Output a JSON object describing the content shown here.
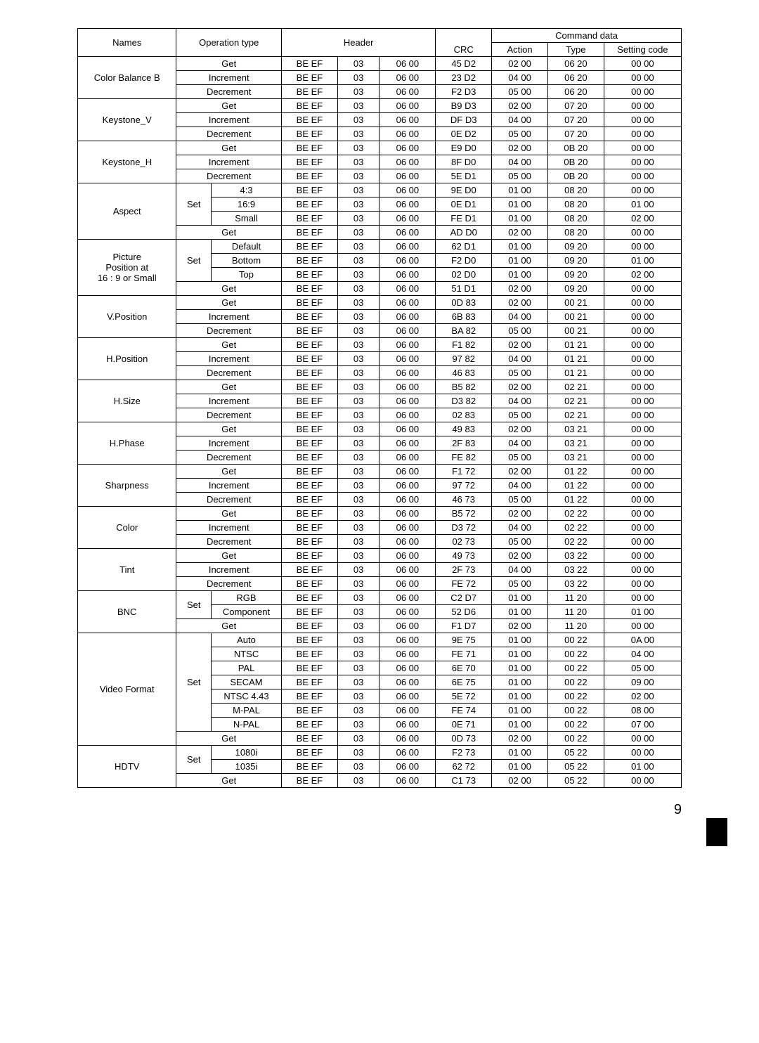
{
  "page_number": "9",
  "headers": {
    "names": "Names",
    "op": "Operation type",
    "header": "Header",
    "crc": "CRC",
    "cmd": "Command data",
    "action": "Action",
    "type": "Type",
    "setting": "Setting code"
  },
  "groups": [
    {
      "name": "Color Balance B",
      "rows": [
        {
          "op": [
            "Get"
          ],
          "h1": "BE  EF",
          "h2": "03",
          "h3": "06  00",
          "crc": "45  D2",
          "a": "02  00",
          "t": "06  20",
          "s": "00  00"
        },
        {
          "op": [
            "Increment"
          ],
          "h1": "BE  EF",
          "h2": "03",
          "h3": "06  00",
          "crc": "23  D2",
          "a": "04  00",
          "t": "06  20",
          "s": "00  00"
        },
        {
          "op": [
            "Decrement"
          ],
          "h1": "BE  EF",
          "h2": "03",
          "h3": "06  00",
          "crc": "F2  D3",
          "a": "05  00",
          "t": "06  20",
          "s": "00  00"
        }
      ]
    },
    {
      "name": "Keystone_V",
      "rows": [
        {
          "op": [
            "Get"
          ],
          "h1": "BE  EF",
          "h2": "03",
          "h3": "06  00",
          "crc": "B9  D3",
          "a": "02  00",
          "t": "07  20",
          "s": "00  00"
        },
        {
          "op": [
            "Increment"
          ],
          "h1": "BE  EF",
          "h2": "03",
          "h3": "06  00",
          "crc": "DF  D3",
          "a": "04  00",
          "t": "07  20",
          "s": "00  00"
        },
        {
          "op": [
            "Decrement"
          ],
          "h1": "BE  EF",
          "h2": "03",
          "h3": "06  00",
          "crc": "0E  D2",
          "a": "05  00",
          "t": "07  20",
          "s": "00  00"
        }
      ]
    },
    {
      "name": "Keystone_H",
      "rows": [
        {
          "op": [
            "Get"
          ],
          "h1": "BE  EF",
          "h2": "03",
          "h3": "06  00",
          "crc": "E9  D0",
          "a": "02  00",
          "t": "0B  20",
          "s": "00  00"
        },
        {
          "op": [
            "Increment"
          ],
          "h1": "BE  EF",
          "h2": "03",
          "h3": "06  00",
          "crc": "8F  D0",
          "a": "04  00",
          "t": "0B  20",
          "s": "00  00"
        },
        {
          "op": [
            "Decrement"
          ],
          "h1": "BE  EF",
          "h2": "03",
          "h3": "06  00",
          "crc": "5E  D1",
          "a": "05  00",
          "t": "0B  20",
          "s": "00  00"
        }
      ]
    },
    {
      "name": "Aspect",
      "rows": [
        {
          "op": [
            "Set",
            "4:3"
          ],
          "h1": "BE  EF",
          "h2": "03",
          "h3": "06  00",
          "crc": "9E  D0",
          "a": "01  00",
          "t": "08  20",
          "s": "00  00",
          "set_span": 3
        },
        {
          "op": [
            null,
            "16:9"
          ],
          "h1": "BE  EF",
          "h2": "03",
          "h3": "06  00",
          "crc": "0E  D1",
          "a": "01  00",
          "t": "08  20",
          "s": "01  00"
        },
        {
          "op": [
            null,
            "Small"
          ],
          "h1": "BE  EF",
          "h2": "03",
          "h3": "06  00",
          "crc": "FE  D1",
          "a": "01  00",
          "t": "08  20",
          "s": "02  00"
        },
        {
          "op": [
            "Get"
          ],
          "h1": "BE  EF",
          "h2": "03",
          "h3": "06  00",
          "crc": "AD  D0",
          "a": "02  00",
          "t": "08  20",
          "s": "00  00"
        }
      ]
    },
    {
      "name": "Picture\nPosition at\n16 : 9 or Small",
      "rows": [
        {
          "op": [
            "Set",
            "Default"
          ],
          "h1": "BE  EF",
          "h2": "03",
          "h3": "06  00",
          "crc": "62  D1",
          "a": "01  00",
          "t": "09  20",
          "s": "00  00",
          "set_span": 3
        },
        {
          "op": [
            null,
            "Bottom"
          ],
          "h1": "BE  EF",
          "h2": "03",
          "h3": "06  00",
          "crc": "F2  D0",
          "a": "01  00",
          "t": "09  20",
          "s": "01  00"
        },
        {
          "op": [
            null,
            "Top"
          ],
          "h1": "BE  EF",
          "h2": "03",
          "h3": "06  00",
          "crc": "02  D0",
          "a": "01  00",
          "t": "09  20",
          "s": "02  00"
        },
        {
          "op": [
            "Get"
          ],
          "h1": "BE  EF",
          "h2": "03",
          "h3": "06  00",
          "crc": "51  D1",
          "a": "02  00",
          "t": "09  20",
          "s": "00  00"
        }
      ]
    },
    {
      "name": "V.Position",
      "rows": [
        {
          "op": [
            "Get"
          ],
          "h1": "BE  EF",
          "h2": "03",
          "h3": "06  00",
          "crc": "0D  83",
          "a": "02  00",
          "t": "00  21",
          "s": "00  00"
        },
        {
          "op": [
            "Increment"
          ],
          "h1": "BE  EF",
          "h2": "03",
          "h3": "06  00",
          "crc": "6B  83",
          "a": "04  00",
          "t": "00  21",
          "s": "00  00"
        },
        {
          "op": [
            "Decrement"
          ],
          "h1": "BE  EF",
          "h2": "03",
          "h3": "06  00",
          "crc": "BA  82",
          "a": "05  00",
          "t": "00  21",
          "s": "00  00"
        }
      ]
    },
    {
      "name": "H.Position",
      "rows": [
        {
          "op": [
            "Get"
          ],
          "h1": "BE  EF",
          "h2": "03",
          "h3": "06  00",
          "crc": "F1  82",
          "a": "02  00",
          "t": "01  21",
          "s": "00  00"
        },
        {
          "op": [
            "Increment"
          ],
          "h1": "BE  EF",
          "h2": "03",
          "h3": "06  00",
          "crc": "97  82",
          "a": "04  00",
          "t": "01  21",
          "s": "00  00"
        },
        {
          "op": [
            "Decrement"
          ],
          "h1": "BE  EF",
          "h2": "03",
          "h3": "06  00",
          "crc": "46  83",
          "a": "05  00",
          "t": "01  21",
          "s": "00  00"
        }
      ]
    },
    {
      "name": "H.Size",
      "rows": [
        {
          "op": [
            "Get"
          ],
          "h1": "BE  EF",
          "h2": "03",
          "h3": "06  00",
          "crc": "B5  82",
          "a": "02  00",
          "t": "02  21",
          "s": "00  00"
        },
        {
          "op": [
            "Increment"
          ],
          "h1": "BE  EF",
          "h2": "03",
          "h3": "06  00",
          "crc": "D3  82",
          "a": "04  00",
          "t": "02  21",
          "s": "00  00"
        },
        {
          "op": [
            "Decrement"
          ],
          "h1": "BE  EF",
          "h2": "03",
          "h3": "06  00",
          "crc": "02  83",
          "a": "05  00",
          "t": "02  21",
          "s": "00  00"
        }
      ]
    },
    {
      "name": "H.Phase",
      "rows": [
        {
          "op": [
            "Get"
          ],
          "h1": "BE  EF",
          "h2": "03",
          "h3": "06  00",
          "crc": "49  83",
          "a": "02  00",
          "t": "03  21",
          "s": "00  00"
        },
        {
          "op": [
            "Increment"
          ],
          "h1": "BE  EF",
          "h2": "03",
          "h3": "06  00",
          "crc": "2F  83",
          "a": "04  00",
          "t": "03  21",
          "s": "00  00"
        },
        {
          "op": [
            "Decrement"
          ],
          "h1": "BE  EF",
          "h2": "03",
          "h3": "06  00",
          "crc": "FE  82",
          "a": "05  00",
          "t": "03  21",
          "s": "00  00"
        }
      ]
    },
    {
      "name": "Sharpness",
      "rows": [
        {
          "op": [
            "Get"
          ],
          "h1": "BE  EF",
          "h2": "03",
          "h3": "06  00",
          "crc": "F1  72",
          "a": "02  00",
          "t": "01  22",
          "s": "00  00"
        },
        {
          "op": [
            "Increment"
          ],
          "h1": "BE  EF",
          "h2": "03",
          "h3": "06  00",
          "crc": "97  72",
          "a": "04  00",
          "t": "01  22",
          "s": "00  00"
        },
        {
          "op": [
            "Decrement"
          ],
          "h1": "BE  EF",
          "h2": "03",
          "h3": "06  00",
          "crc": "46  73",
          "a": "05  00",
          "t": "01  22",
          "s": "00  00"
        }
      ]
    },
    {
      "name": "Color",
      "rows": [
        {
          "op": [
            "Get"
          ],
          "h1": "BE  EF",
          "h2": "03",
          "h3": "06  00",
          "crc": "B5  72",
          "a": "02  00",
          "t": "02  22",
          "s": "00  00"
        },
        {
          "op": [
            "Increment"
          ],
          "h1": "BE  EF",
          "h2": "03",
          "h3": "06  00",
          "crc": "D3  72",
          "a": "04  00",
          "t": "02  22",
          "s": "00  00"
        },
        {
          "op": [
            "Decrement"
          ],
          "h1": "BE  EF",
          "h2": "03",
          "h3": "06  00",
          "crc": "02  73",
          "a": "05  00",
          "t": "02  22",
          "s": "00  00"
        }
      ]
    },
    {
      "name": "Tint",
      "rows": [
        {
          "op": [
            "Get"
          ],
          "h1": "BE  EF",
          "h2": "03",
          "h3": "06  00",
          "crc": "49  73",
          "a": "02  00",
          "t": "03  22",
          "s": "00  00"
        },
        {
          "op": [
            "Increment"
          ],
          "h1": "BE  EF",
          "h2": "03",
          "h3": "06  00",
          "crc": "2F  73",
          "a": "04  00",
          "t": "03  22",
          "s": "00  00"
        },
        {
          "op": [
            "Decrement"
          ],
          "h1": "BE  EF",
          "h2": "03",
          "h3": "06  00",
          "crc": "FE  72",
          "a": "05  00",
          "t": "03  22",
          "s": "00  00"
        }
      ]
    },
    {
      "name": "BNC",
      "rows": [
        {
          "op": [
            "Set",
            "RGB"
          ],
          "h1": "BE  EF",
          "h2": "03",
          "h3": "06  00",
          "crc": "C2  D7",
          "a": "01  00",
          "t": "11  20",
          "s": "00  00",
          "set_span": 2
        },
        {
          "op": [
            null,
            "Component"
          ],
          "h1": "BE  EF",
          "h2": "03",
          "h3": "06  00",
          "crc": "52  D6",
          "a": "01  00",
          "t": "11  20",
          "s": "01  00"
        },
        {
          "op": [
            "Get"
          ],
          "h1": "BE  EF",
          "h2": "03",
          "h3": "06  00",
          "crc": "F1  D7",
          "a": "02  00",
          "t": "11  20",
          "s": "00  00"
        }
      ]
    },
    {
      "name": "Video Format",
      "rows": [
        {
          "op": [
            "Set",
            "Auto"
          ],
          "h1": "BE  EF",
          "h2": "03",
          "h3": "06  00",
          "crc": "9E  75",
          "a": "01  00",
          "t": "00  22",
          "s": "0A  00",
          "set_span": 7
        },
        {
          "op": [
            null,
            "NTSC"
          ],
          "h1": "BE  EF",
          "h2": "03",
          "h3": "06  00",
          "crc": "FE  71",
          "a": "01  00",
          "t": "00  22",
          "s": "04  00"
        },
        {
          "op": [
            null,
            "PAL"
          ],
          "h1": "BE  EF",
          "h2": "03",
          "h3": "06  00",
          "crc": "6E  70",
          "a": "01  00",
          "t": "00  22",
          "s": "05  00"
        },
        {
          "op": [
            null,
            "SECAM"
          ],
          "h1": "BE  EF",
          "h2": "03",
          "h3": "06  00",
          "crc": "6E  75",
          "a": "01  00",
          "t": "00  22",
          "s": "09  00"
        },
        {
          "op": [
            null,
            "NTSC 4.43"
          ],
          "h1": "BE  EF",
          "h2": "03",
          "h3": "06  00",
          "crc": "5E  72",
          "a": "01  00",
          "t": "00  22",
          "s": "02  00"
        },
        {
          "op": [
            null,
            "M-PAL"
          ],
          "h1": "BE  EF",
          "h2": "03",
          "h3": "06  00",
          "crc": "FE  74",
          "a": "01  00",
          "t": "00  22",
          "s": "08  00"
        },
        {
          "op": [
            null,
            "N-PAL"
          ],
          "h1": "BE  EF",
          "h2": "03",
          "h3": "06  00",
          "crc": "0E  71",
          "a": "01  00",
          "t": "00  22",
          "s": "07  00"
        },
        {
          "op": [
            "Get"
          ],
          "h1": "BE  EF",
          "h2": "03",
          "h3": "06  00",
          "crc": "0D  73",
          "a": "02  00",
          "t": "00  22",
          "s": "00  00"
        }
      ]
    },
    {
      "name": "HDTV",
      "rows": [
        {
          "op": [
            "Set",
            "1080i"
          ],
          "h1": "BE  EF",
          "h2": "03",
          "h3": "06  00",
          "crc": "F2  73",
          "a": "01  00",
          "t": "05  22",
          "s": "00  00",
          "set_span": 2
        },
        {
          "op": [
            null,
            "1035i"
          ],
          "h1": "BE  EF",
          "h2": "03",
          "h3": "06  00",
          "crc": "62  72",
          "a": "01  00",
          "t": "05  22",
          "s": "01  00"
        },
        {
          "op": [
            "Get"
          ],
          "h1": "BE  EF",
          "h2": "03",
          "h3": "06  00",
          "crc": "C1  73",
          "a": "02  00",
          "t": "05  22",
          "s": "00  00"
        }
      ]
    }
  ],
  "col_widths": {
    "names": 130,
    "op_full": 130,
    "op_set": 40,
    "op_val": 90,
    "h1": 70,
    "h2": 50,
    "h3": 70,
    "crc": 70,
    "a": 70,
    "t": 70,
    "s": 100
  }
}
